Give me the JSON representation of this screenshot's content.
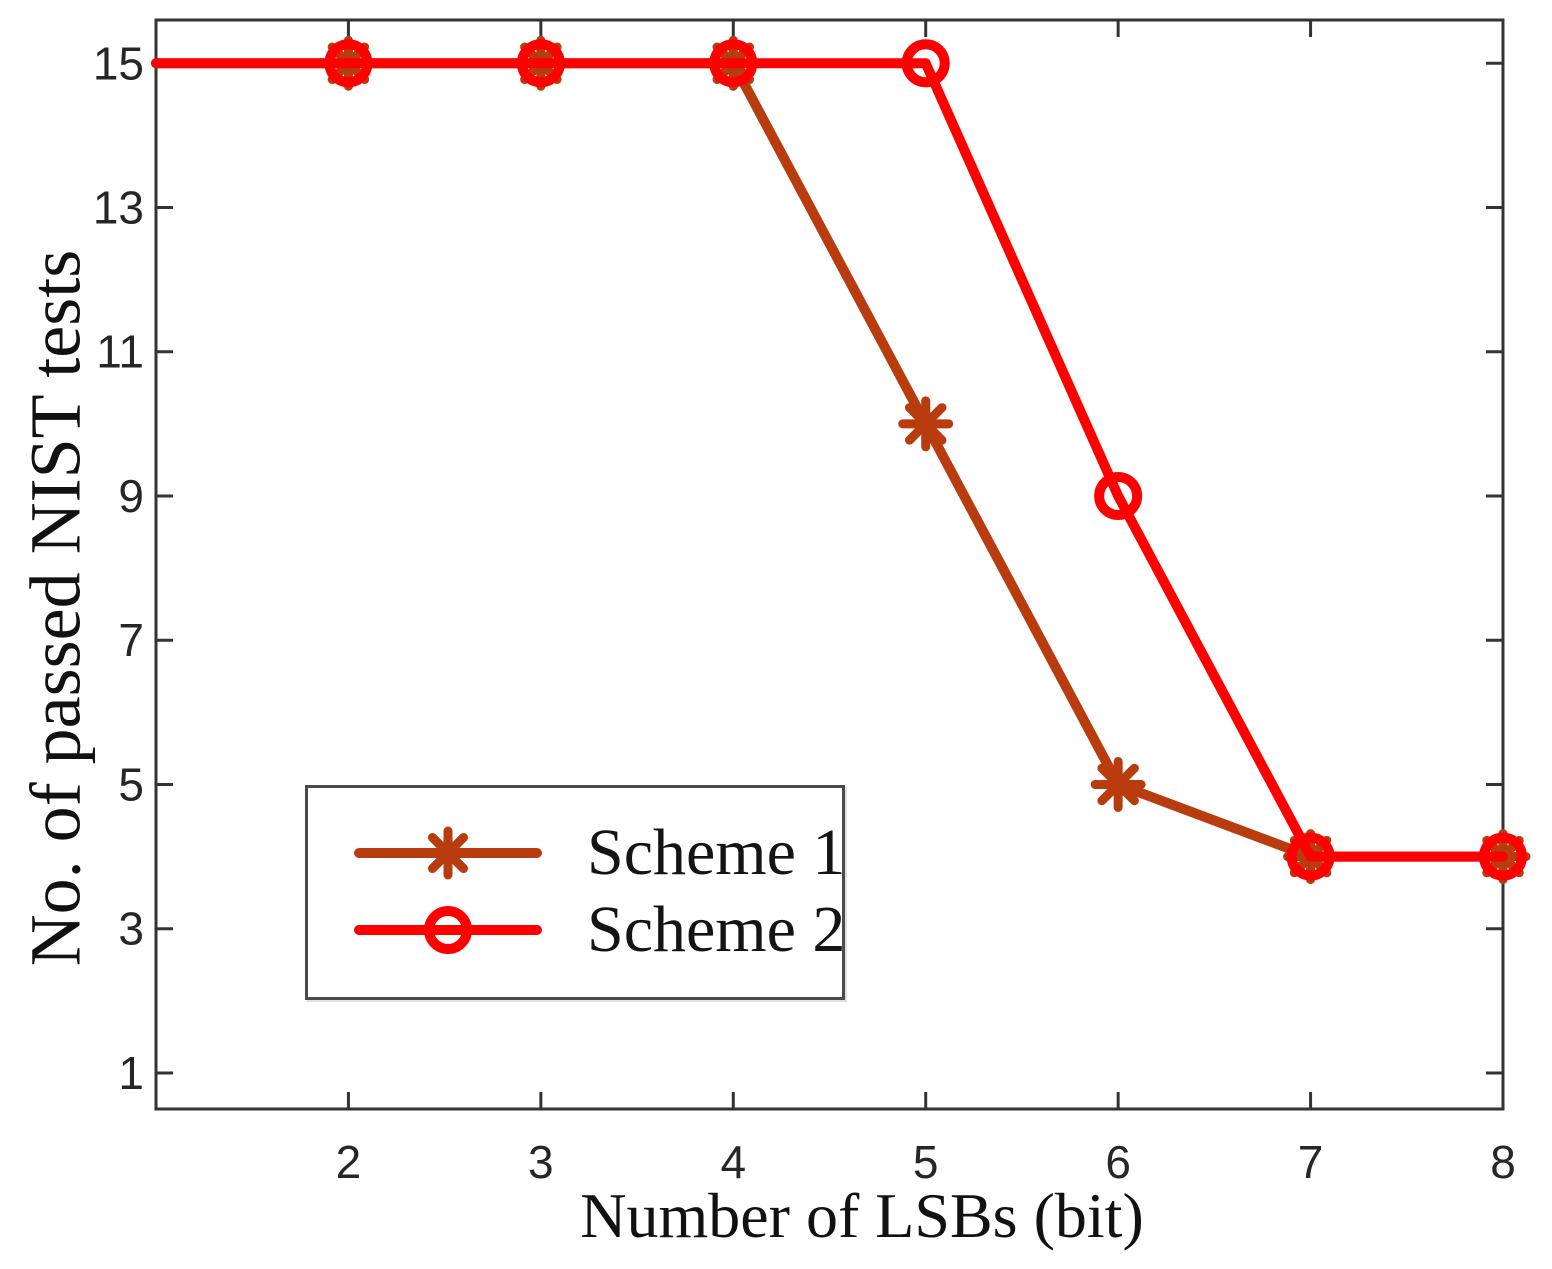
{
  "figure": {
    "background": "#ffffff",
    "axis_color": "#333333",
    "tick_label_color": "#262626"
  },
  "chart_data": {
    "type": "line",
    "title": "",
    "xlabel": "Number of LSBs (bit)",
    "ylabel": "No. of passed NIST tests",
    "x": [
      1,
      2,
      3,
      4,
      5,
      6,
      7,
      8
    ],
    "series": [
      {
        "name": "Scheme 1",
        "color": "#B83C0E",
        "marker": "asterisk",
        "values": [
          15,
          15,
          15,
          15,
          10,
          5,
          4,
          4
        ]
      },
      {
        "name": "Scheme 2",
        "color": "#FF0000",
        "marker": "circle",
        "values": [
          15,
          15,
          15,
          15,
          15,
          9,
          4,
          4
        ]
      }
    ],
    "xticks": [
      2,
      3,
      4,
      5,
      6,
      7,
      8
    ],
    "yticks": [
      1,
      3,
      5,
      7,
      9,
      11,
      13,
      15
    ],
    "xlim": [
      1,
      8
    ],
    "ylim": [
      0.5,
      15.6
    ],
    "markers_from_x": 2,
    "grid": false,
    "legend_position": "lower-left",
    "line_width": 10,
    "marker_size": 48
  }
}
